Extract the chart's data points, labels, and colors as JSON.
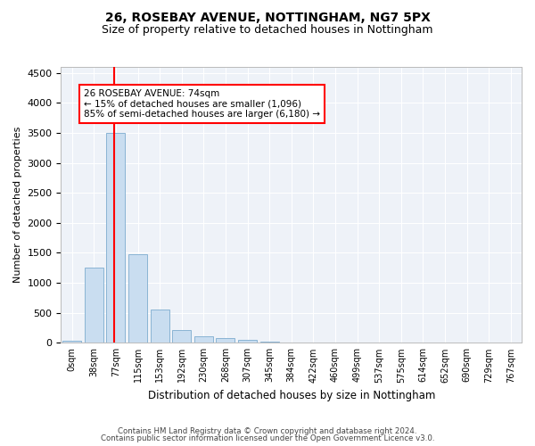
{
  "title1": "26, ROSEBAY AVENUE, NOTTINGHAM, NG7 5PX",
  "title2": "Size of property relative to detached houses in Nottingham",
  "xlabel": "Distribution of detached houses by size in Nottingham",
  "ylabel": "Number of detached properties",
  "bar_labels": [
    "0sqm",
    "38sqm",
    "77sqm",
    "115sqm",
    "153sqm",
    "192sqm",
    "230sqm",
    "268sqm",
    "307sqm",
    "345sqm",
    "384sqm",
    "422sqm",
    "460sqm",
    "499sqm",
    "537sqm",
    "575sqm",
    "614sqm",
    "652sqm",
    "690sqm",
    "729sqm",
    "767sqm"
  ],
  "bar_values": [
    30,
    1250,
    3500,
    1470,
    560,
    220,
    115,
    80,
    50,
    20,
    10,
    5,
    3,
    2,
    0,
    0,
    0,
    0,
    0,
    0,
    0
  ],
  "bar_color": "#c9ddf0",
  "bar_edge_color": "#8ab4d4",
  "property_line_x": 1.92,
  "annotation_text": "26 ROSEBAY AVENUE: 74sqm\n← 15% of detached houses are smaller (1,096)\n85% of semi-detached houses are larger (6,180) →",
  "annotation_box_color": "white",
  "annotation_box_edge_color": "red",
  "vline_color": "red",
  "ylim": [
    0,
    4600
  ],
  "yticks": [
    0,
    500,
    1000,
    1500,
    2000,
    2500,
    3000,
    3500,
    4000,
    4500
  ],
  "footer1": "Contains HM Land Registry data © Crown copyright and database right 2024.",
  "footer2": "Contains public sector information licensed under the Open Government Licence v3.0.",
  "bg_color": "#eef2f8",
  "grid_color": "white",
  "title1_fontsize": 10,
  "title2_fontsize": 9,
  "xlabel_fontsize": 8.5,
  "ylabel_fontsize": 8
}
